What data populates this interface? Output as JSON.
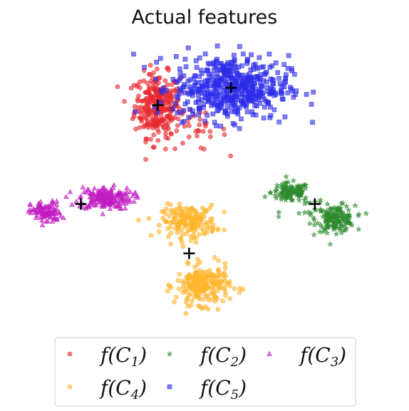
{
  "chart_data": {
    "type": "scatter",
    "title": "Actual features",
    "xlabel": "",
    "ylabel": "",
    "axes_visible": false,
    "grid": false,
    "xlim": [
      0,
      100
    ],
    "ylim": [
      0,
      100
    ],
    "legend_placement": "bottom",
    "series": [
      {
        "name": "f(C₁)",
        "legend_main": "f(C",
        "legend_sub": "1",
        "color": "#e8282f",
        "marker": "circle",
        "centroid": [
          37,
          79
        ],
        "clusters": [
          {
            "center": [
              37,
              79
            ],
            "spread": [
              6,
              10
            ],
            "count": 300
          },
          {
            "center": [
              48,
              70
            ],
            "spread": [
              8,
              6
            ],
            "count": 30
          }
        ]
      },
      {
        "name": "f(C₂)",
        "legend_main": "f(C",
        "legend_sub": "2",
        "color": "#2d8a2d",
        "marker": "star",
        "centroid": [
          82,
          45
        ],
        "clusters": [
          {
            "center": [
              75,
              49
            ],
            "spread": [
              5,
              3
            ],
            "count": 110
          },
          {
            "center": [
              88,
              40
            ],
            "spread": [
              5,
              4
            ],
            "count": 150
          },
          {
            "center": [
              82,
              42
            ],
            "spread": [
              9,
              7
            ],
            "count": 25
          }
        ]
      },
      {
        "name": "f(C₃)",
        "legend_main": "f(C",
        "legend_sub": "3",
        "color": "#c21cc2",
        "marker": "triangle",
        "centroid": [
          15,
          45
        ],
        "clusters": [
          {
            "center": [
              22,
              47
            ],
            "spread": [
              7,
              3.5
            ],
            "count": 190
          },
          {
            "center": [
              5,
              42
            ],
            "spread": [
              4,
              3.5
            ],
            "count": 100
          }
        ]
      },
      {
        "name": "f(C₄)",
        "legend_main": "f(C",
        "legend_sub": "4",
        "color": "#ffb52e",
        "marker": "circle",
        "centroid": [
          46,
          28
        ],
        "clusters": [
          {
            "center": [
              46,
              39
            ],
            "spread": [
              7,
              5
            ],
            "count": 190
          },
          {
            "center": [
              50,
              17
            ],
            "spread": [
              7,
              6
            ],
            "count": 230
          }
        ]
      },
      {
        "name": "f(C₅)",
        "legend_main": "f(C",
        "legend_sub": "5",
        "color": "#2b2bea",
        "marker": "square",
        "centroid": [
          58,
          85
        ],
        "clusters": [
          {
            "center": [
              58,
              85
            ],
            "spread": [
              15,
              10
            ],
            "count": 520
          }
        ]
      }
    ]
  }
}
